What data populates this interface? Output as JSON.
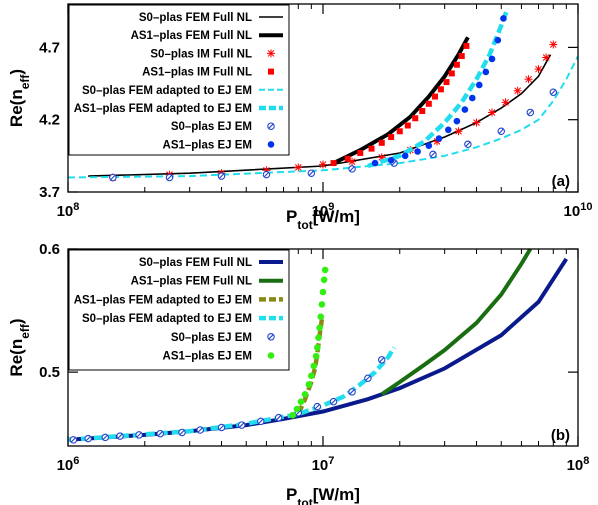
{
  "chart_data": [
    {
      "type": "line",
      "panel_label": "(a)",
      "xlabel": "P",
      "xlabel_sub": "tot",
      "xlabel_unit": "[W/m]",
      "ylabel": "Re(n",
      "ylabel_sub": "eff",
      "ylabel_close": ")",
      "x_scale": "log",
      "xlim": [
        100000000,
        10000000000
      ],
      "ylim": [
        3.7,
        5.0
      ],
      "x_ticks": [
        100000000,
        1000000000,
        10000000000
      ],
      "x_tick_exponents": [
        "8",
        "9",
        "10"
      ],
      "x_tick_base": "10",
      "y_ticks": [
        3.7,
        4.2,
        4.7
      ],
      "y_tick_labels": [
        "3.7",
        "4.2",
        "4.7"
      ],
      "legend_position": "top-left",
      "series": [
        {
          "name": "S0–plas FEM Full NL",
          "style": "line",
          "color": "#000000",
          "x": [
            120000000,
            300000000,
            1000000000,
            2000000000,
            3000000000,
            4000000000,
            5000000000,
            6000000000,
            7000000000,
            7800000000
          ],
          "values": [
            3.81,
            3.83,
            3.88,
            3.97,
            4.08,
            4.18,
            4.28,
            4.38,
            4.5,
            4.65
          ]
        },
        {
          "name": "AS1–plas FEM Full NL",
          "style": "thickline",
          "color": "#000000",
          "x": [
            1100000000,
            1400000000,
            1800000000,
            2200000000,
            2600000000,
            3000000000,
            3400000000,
            3700000000
          ],
          "values": [
            3.9,
            3.99,
            4.1,
            4.22,
            4.36,
            4.5,
            4.65,
            4.77
          ]
        },
        {
          "name": "S0–plas IM Full NL",
          "style": "star",
          "color": "#ff0000",
          "x": [
            150000000,
            250000000,
            400000000,
            600000000,
            800000000,
            1000000000,
            1300000000,
            1700000000,
            2200000000,
            2800000000,
            3400000000,
            4000000000,
            4600000000,
            5200000000,
            5800000000,
            6400000000,
            7000000000,
            7500000000,
            8000000000
          ],
          "values": [
            3.8,
            3.82,
            3.83,
            3.85,
            3.87,
            3.89,
            3.91,
            3.94,
            3.99,
            4.05,
            4.12,
            4.18,
            4.25,
            4.32,
            4.4,
            4.48,
            4.55,
            4.63,
            4.72
          ]
        },
        {
          "name": "AS1–plas IM Full NL",
          "style": "square",
          "color": "#ff0000",
          "x": [
            1100000000,
            1250000000,
            1400000000,
            1550000000,
            1700000000,
            1850000000,
            2000000000,
            2150000000,
            2300000000,
            2450000000,
            2600000000,
            2750000000,
            2900000000,
            3050000000,
            3200000000,
            3350000000,
            3500000000,
            3650000000
          ],
          "values": [
            3.9,
            3.93,
            3.97,
            4.0,
            4.04,
            4.08,
            4.12,
            4.16,
            4.21,
            4.26,
            4.31,
            4.36,
            4.41,
            4.46,
            4.52,
            4.58,
            4.64,
            4.71
          ]
        },
        {
          "name": "S0–plas FEM adapted to EJ EM",
          "style": "dash",
          "color": "#22ddee",
          "x": [
            100000000,
            300000000,
            1000000000,
            2000000000,
            3000000000,
            4000000000,
            5000000000,
            6000000000,
            7000000000,
            8000000000,
            9000000000,
            10000000000
          ],
          "values": [
            3.8,
            3.81,
            3.85,
            3.9,
            3.95,
            4.01,
            4.07,
            4.13,
            4.2,
            4.33,
            4.48,
            4.64
          ]
        },
        {
          "name": "AS1–plas FEM adapted to EJ EM",
          "style": "thickdash",
          "color": "#22ddee",
          "x": [
            1500000000,
            2000000000,
            2500000000,
            3000000000,
            3500000000,
            4000000000,
            4500000000,
            5000000000,
            5300000000
          ],
          "values": [
            3.88,
            3.95,
            4.05,
            4.18,
            4.32,
            4.48,
            4.65,
            4.85,
            4.97
          ]
        },
        {
          "name": "S0–plas EJ EM",
          "style": "hatchdot",
          "color": "#2244cc",
          "x": [
            150000000,
            250000000,
            400000000,
            600000000,
            900000000,
            1300000000,
            1900000000,
            2700000000,
            3700000000,
            5000000000,
            6500000000,
            8000000000
          ],
          "values": [
            3.8,
            3.8,
            3.81,
            3.82,
            3.83,
            3.86,
            3.9,
            3.96,
            4.03,
            4.12,
            4.25,
            4.39
          ]
        },
        {
          "name": "AS1–plas EJ EM",
          "style": "dot",
          "color": "#0033ee",
          "x": [
            1600000000,
            1850000000,
            2100000000,
            2350000000,
            2600000000,
            2850000000,
            3100000000,
            3350000000,
            3600000000,
            3850000000,
            4100000000,
            4350000000,
            4600000000,
            4850000000,
            5100000000
          ],
          "values": [
            3.9,
            3.92,
            3.95,
            3.98,
            4.02,
            4.07,
            4.13,
            4.19,
            4.27,
            4.35,
            4.44,
            4.53,
            4.62,
            4.75,
            4.9
          ]
        }
      ]
    },
    {
      "type": "line",
      "panel_label": "(b)",
      "xlabel": "P",
      "xlabel_sub": "tot",
      "xlabel_unit": "[W/m]",
      "ylabel": "Re(n",
      "ylabel_sub": "eff",
      "ylabel_close": ")",
      "x_scale": "log",
      "xlim": [
        1000000,
        100000000
      ],
      "ylim": [
        0.44,
        0.6
      ],
      "x_ticks": [
        1000000,
        10000000,
        100000000
      ],
      "x_tick_exponents": [
        "6",
        "7",
        "8"
      ],
      "x_tick_base": "10",
      "y_ticks": [
        0.5,
        0.6
      ],
      "y_tick_labels": [
        "0.5",
        "0.6"
      ],
      "legend_position": "top-left",
      "series": [
        {
          "name": "S0–plas FEM Full NL",
          "style": "thickline",
          "color": "#0a1a8c",
          "x": [
            1000000,
            2000000,
            3000000,
            5000000,
            7000000,
            10000000,
            15000000,
            20000000,
            30000000,
            50000000,
            70000000,
            90000000
          ],
          "values": [
            0.445,
            0.449,
            0.452,
            0.457,
            0.462,
            0.468,
            0.478,
            0.487,
            0.503,
            0.53,
            0.557,
            0.592
          ]
        },
        {
          "name": "AS1–plas FEM Full NL",
          "style": "thickline",
          "color": "#1a6e12",
          "x": [
            17000000,
            20000000,
            25000000,
            30000000,
            40000000,
            50000000,
            60000000,
            65000000
          ],
          "values": [
            0.482,
            0.492,
            0.506,
            0.518,
            0.54,
            0.563,
            0.588,
            0.6
          ]
        },
        {
          "name": "AS1–plas FEM adapted to EJ EM",
          "style": "thickdash",
          "color": "#8a8a1a",
          "x": [
            8000000,
            8500000,
            9000000,
            9300000,
            9500000,
            9700000,
            9900000
          ],
          "values": [
            0.466,
            0.478,
            0.492,
            0.503,
            0.515,
            0.53,
            0.543
          ]
        },
        {
          "name": "S0–plas FEM adapted to EJ EM",
          "style": "thickdash",
          "color": "#22ddee",
          "x": [
            1000000,
            3000000,
            5000000,
            8000000,
            10000000,
            12000000,
            14000000,
            16000000,
            18000000,
            19000000
          ],
          "values": [
            0.445,
            0.452,
            0.458,
            0.466,
            0.473,
            0.48,
            0.49,
            0.5,
            0.512,
            0.52
          ]
        },
        {
          "name": "S0–plas EJ EM",
          "style": "hatchdot",
          "color": "#2244cc",
          "x": [
            1050000,
            1200000,
            1400000,
            1600000,
            1900000,
            2300000,
            2800000,
            3300000,
            4000000,
            4800000,
            5700000,
            6700000,
            8000000,
            9500000,
            11000000,
            13000000,
            15000000,
            17000000
          ],
          "values": [
            0.445,
            0.446,
            0.447,
            0.448,
            0.449,
            0.45,
            0.451,
            0.453,
            0.455,
            0.457,
            0.46,
            0.463,
            0.467,
            0.472,
            0.476,
            0.484,
            0.495,
            0.51
          ]
        },
        {
          "name": "AS1–plas EJ EM",
          "style": "dot",
          "color": "#33ee11",
          "x": [
            7600000,
            7900000,
            8200000,
            8500000,
            8800000,
            9000000,
            9200000,
            9400000,
            9500000,
            9600000,
            9700000,
            9800000,
            9900000,
            10000000,
            10100000,
            10200000
          ],
          "values": [
            0.465,
            0.47,
            0.476,
            0.482,
            0.49,
            0.497,
            0.505,
            0.513,
            0.52,
            0.528,
            0.536,
            0.545,
            0.555,
            0.565,
            0.575,
            0.583
          ]
        }
      ]
    }
  ]
}
